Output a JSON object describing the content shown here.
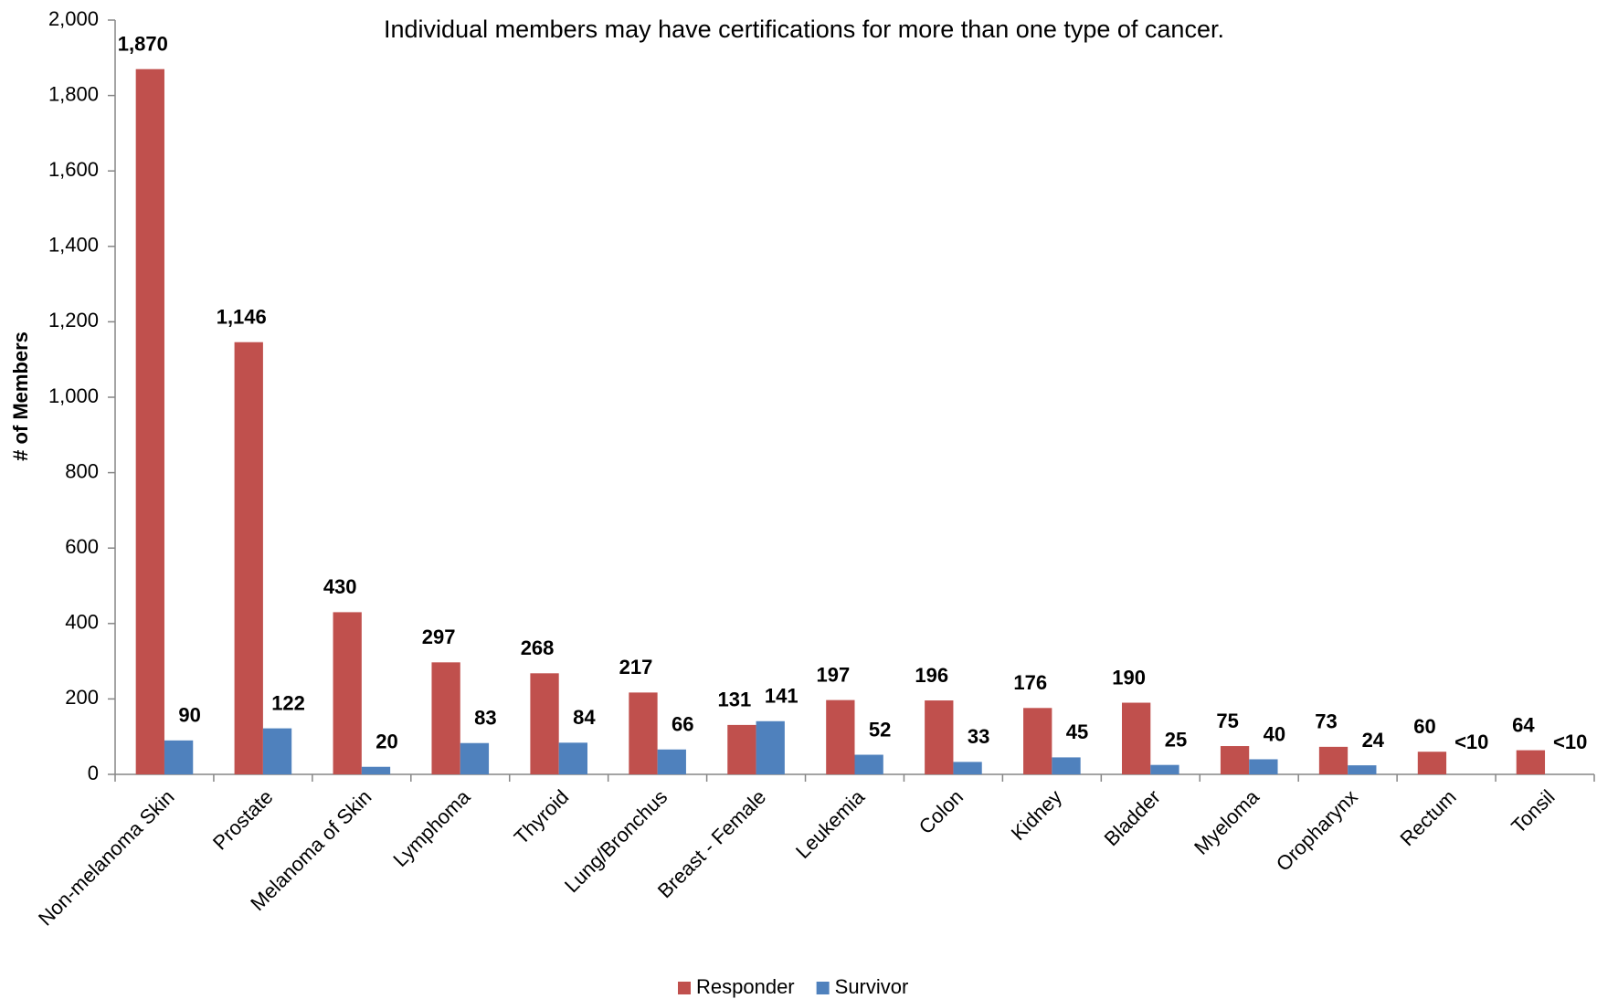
{
  "chart_data": {
    "type": "bar",
    "subtitle": "Individual members may have certifications for more than one type of cancer.",
    "y_label": "# of Members",
    "categories": [
      "Non-melanoma Skin",
      "Prostate",
      "Melanoma of Skin",
      "Lymphoma",
      "Thyroid",
      "Lung/Bronchus",
      "Breast - Female",
      "Leukemia",
      "Colon",
      "Kidney",
      "Bladder",
      "Myeloma",
      "Oropharynx",
      "Rectum",
      "Tonsil"
    ],
    "series": [
      {
        "name": "Responder",
        "color": "#c0504d",
        "values": [
          1870,
          1146,
          430,
          297,
          268,
          217,
          131,
          197,
          196,
          176,
          190,
          75,
          73,
          60,
          64
        ],
        "value_labels": [
          "1,870",
          "1,146",
          "430",
          "297",
          "268",
          "217",
          "131",
          "197",
          "196",
          "176",
          "190",
          "75",
          "73",
          "60",
          "64"
        ]
      },
      {
        "name": "Survivor",
        "color": "#4f81bd",
        "values": [
          90,
          122,
          20,
          83,
          84,
          66,
          141,
          52,
          33,
          45,
          25,
          40,
          24,
          null,
          null
        ],
        "value_labels": [
          "90",
          "122",
          "20",
          "83",
          "84",
          "66",
          "141",
          "52",
          "33",
          "45",
          "25",
          "40",
          "24",
          "<10",
          "<10"
        ]
      }
    ],
    "ylim": [
      0,
      2000
    ],
    "yticks": [
      0,
      200,
      400,
      600,
      800,
      {
        "value": 1000,
        "label": "1,000"
      },
      {
        "value": 1200,
        "label": "1,200"
      },
      {
        "value": 1400,
        "label": "1,400"
      },
      {
        "value": 1600,
        "label": "1,600"
      },
      {
        "value": 1800,
        "label": "1,800"
      },
      {
        "value": 2000,
        "label": "2,000"
      }
    ],
    "grid": false,
    "legend": "bottom"
  }
}
